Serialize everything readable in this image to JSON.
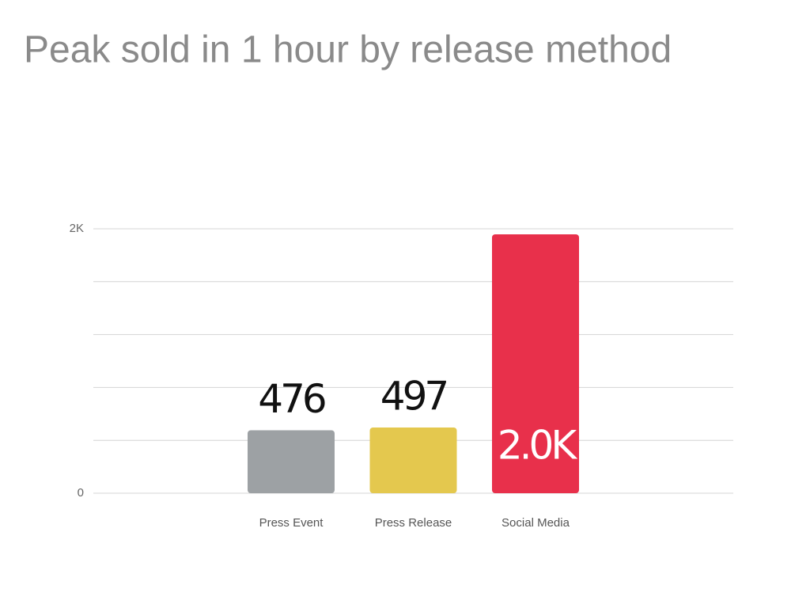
{
  "chart_data": {
    "type": "bar",
    "title": "Peak sold in 1 hour by release method",
    "categories": [
      "Press Event",
      "Press Release",
      "Social Media"
    ],
    "values": [
      476,
      497,
      1958
    ],
    "value_labels": [
      "476",
      "497",
      "2.0K"
    ],
    "colors": [
      "#9da1a4",
      "#e4c84e",
      "#e8304b"
    ],
    "ylim": [
      0,
      2000
    ],
    "yticks": [
      0,
      {
        "value": 400,
        "label": null
      },
      {
        "value": 800,
        "label": null
      },
      {
        "value": 1200,
        "label": null
      },
      {
        "value": 1600,
        "label": null
      },
      {
        "value": 2000,
        "label": "2K"
      }
    ],
    "grid": true
  }
}
